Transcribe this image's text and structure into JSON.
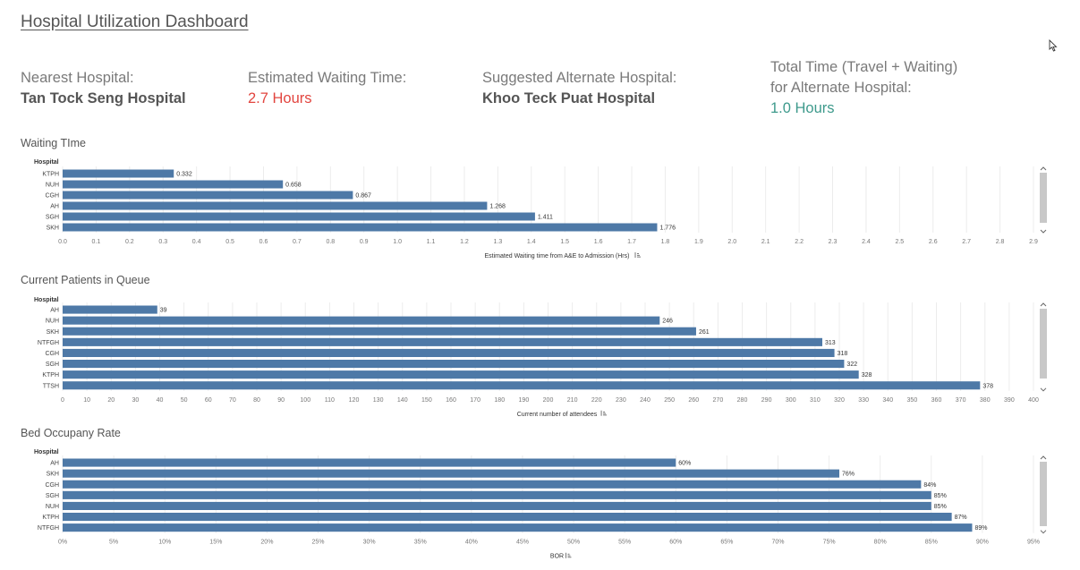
{
  "header": {
    "title": "Hospital Utilization Dashboard"
  },
  "kpis": {
    "nearest_label": "Nearest Hospital:",
    "nearest_value": "Tan Tock Seng Hospital",
    "wait_label": "Estimated Waiting Time:",
    "wait_value": "2.7 Hours",
    "alt_label": "Suggested Alternate Hospital:",
    "alt_value": "Khoo Teck Puat Hospital",
    "total_label_1": "Total Time (Travel + Waiting)",
    "total_label_2": "for Alternate Hospital:",
    "total_value": "1.0 Hours"
  },
  "colors": {
    "bar": "#4e79a7",
    "wait": "#e2453f",
    "total": "#3e9a8c"
  },
  "chart_data": [
    {
      "id": "waiting",
      "type": "bar",
      "orientation": "horizontal",
      "title": "Waiting TIme",
      "row_header": "Hospital",
      "xlabel": "Estimated Waiting time from A&E to Admission (Hrs)",
      "categories": [
        "KTPH",
        "NUH",
        "CGH",
        "AH",
        "SGH",
        "SKH"
      ],
      "values": [
        0.332,
        0.658,
        0.867,
        1.268,
        1.411,
        1.776
      ],
      "labels": [
        "0.332",
        "0.658",
        "0.867",
        "1.268",
        "1.411",
        "1.776"
      ],
      "xlim": [
        0,
        2.9
      ],
      "ticks": [
        0,
        0.1,
        0.2,
        0.3,
        0.4,
        0.5,
        0.6,
        0.7,
        0.8,
        0.9,
        1.0,
        1.1,
        1.2,
        1.3,
        1.4,
        1.5,
        1.6,
        1.7,
        1.8,
        1.9,
        2.0,
        2.1,
        2.2,
        2.3,
        2.4,
        2.5,
        2.6,
        2.7,
        2.8,
        2.9
      ],
      "tick_labels": [
        "0.0",
        "0.1",
        "0.2",
        "0.3",
        "0.4",
        "0.5",
        "0.6",
        "0.7",
        "0.8",
        "0.9",
        "1.0",
        "1.1",
        "1.2",
        "1.3",
        "1.4",
        "1.5",
        "1.6",
        "1.7",
        "1.8",
        "1.9",
        "2.0",
        "2.1",
        "2.2",
        "2.3",
        "2.4",
        "2.5",
        "2.6",
        "2.7",
        "2.8",
        "2.9"
      ],
      "grid": true
    },
    {
      "id": "queue",
      "type": "bar",
      "orientation": "horizontal",
      "title": "Current Patients in Queue",
      "row_header": "Hospital",
      "xlabel": "Current number of attendees",
      "categories": [
        "AH",
        "NUH",
        "SKH",
        "NTFGH",
        "CGH",
        "SGH",
        "KTPH",
        "TTSH"
      ],
      "values": [
        39,
        246,
        261,
        313,
        318,
        322,
        328,
        378
      ],
      "labels": [
        "39",
        "246",
        "261",
        "313",
        "318",
        "322",
        "328",
        "378"
      ],
      "xlim": [
        0,
        400
      ],
      "ticks": [
        0,
        10,
        20,
        30,
        40,
        50,
        60,
        70,
        80,
        90,
        100,
        110,
        120,
        130,
        140,
        150,
        160,
        170,
        180,
        190,
        200,
        210,
        220,
        230,
        240,
        250,
        260,
        270,
        280,
        290,
        300,
        310,
        320,
        330,
        340,
        350,
        360,
        370,
        380,
        390,
        400
      ],
      "tick_labels": [
        "0",
        "10",
        "20",
        "30",
        "40",
        "50",
        "60",
        "70",
        "80",
        "90",
        "100",
        "110",
        "120",
        "130",
        "140",
        "150",
        "160",
        "170",
        "180",
        "190",
        "200",
        "210",
        "220",
        "230",
        "240",
        "250",
        "260",
        "270",
        "280",
        "290",
        "300",
        "310",
        "320",
        "330",
        "340",
        "350",
        "360",
        "370",
        "380",
        "390",
        "400"
      ],
      "grid": true
    },
    {
      "id": "bor",
      "type": "bar",
      "orientation": "horizontal",
      "title": "Bed Occupany Rate",
      "row_header": "Hospital",
      "xlabel": "BOR",
      "categories": [
        "AH",
        "SKH",
        "CGH",
        "SGH",
        "NUH",
        "KTPH",
        "NTFGH"
      ],
      "values": [
        60,
        76,
        84,
        85,
        85,
        87,
        89
      ],
      "labels": [
        "60%",
        "76%",
        "84%",
        "85%",
        "85%",
        "87%",
        "89%"
      ],
      "xlim": [
        0,
        95
      ],
      "ticks": [
        0,
        5,
        10,
        15,
        20,
        25,
        30,
        35,
        40,
        45,
        50,
        55,
        60,
        65,
        70,
        75,
        80,
        85,
        90,
        95
      ],
      "tick_labels": [
        "0%",
        "5%",
        "10%",
        "15%",
        "20%",
        "25%",
        "30%",
        "35%",
        "40%",
        "45%",
        "50%",
        "55%",
        "60%",
        "65%",
        "70%",
        "75%",
        "80%",
        "85%",
        "90%",
        "95%"
      ],
      "grid": true
    }
  ]
}
